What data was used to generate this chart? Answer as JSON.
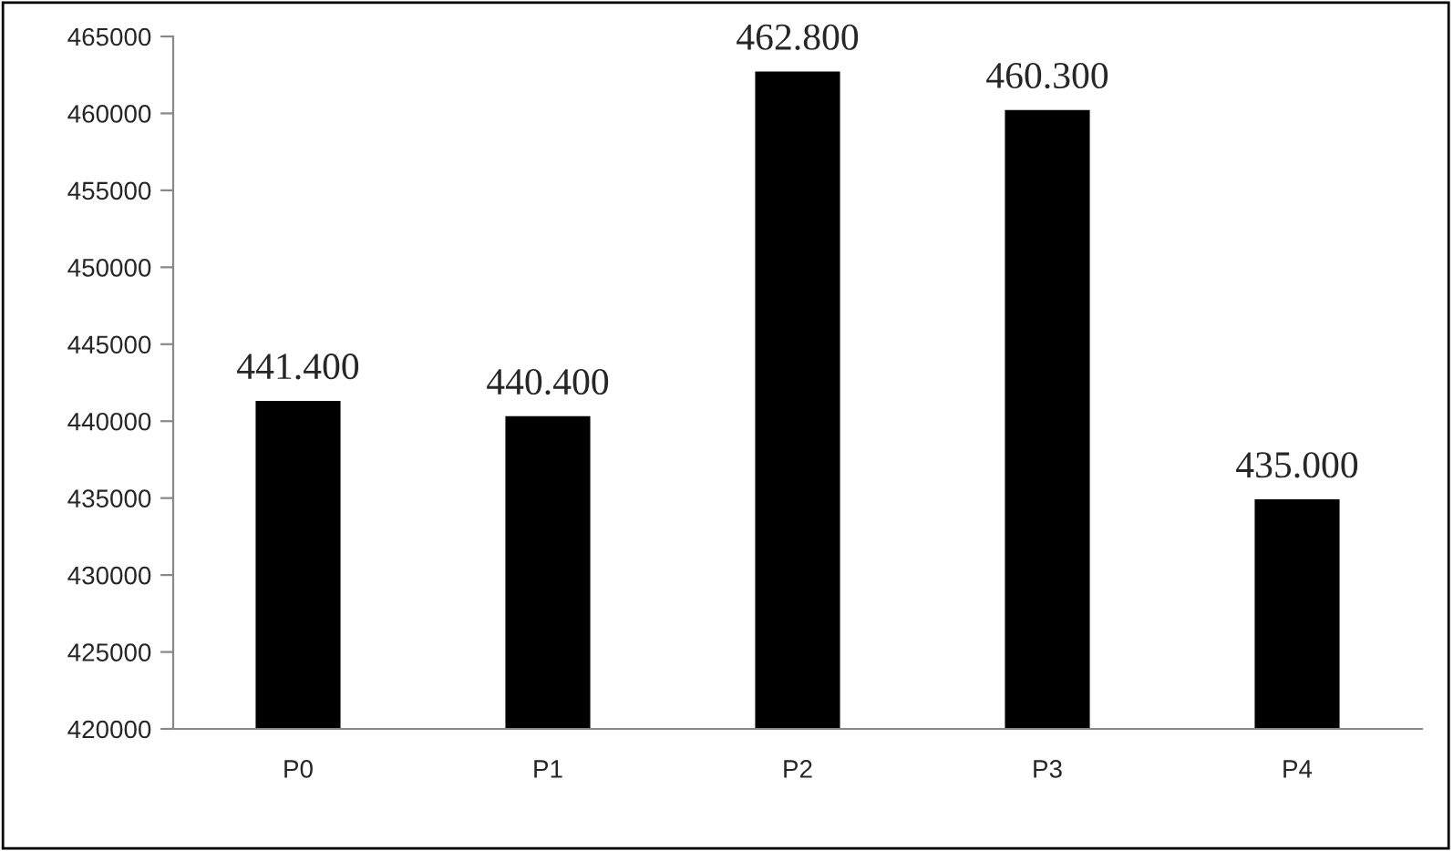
{
  "chart_data": {
    "type": "bar",
    "categories": [
      "P0",
      "P1",
      "P2",
      "P3",
      "P4"
    ],
    "values": [
      441400,
      440400,
      462800,
      460300,
      435000
    ],
    "value_labels": [
      "441.400",
      "440.400",
      "462.800",
      "460.300",
      "435.000"
    ],
    "color": "#000000",
    "ylim": [
      420000,
      465000
    ],
    "yticks": [
      420000,
      425000,
      430000,
      435000,
      440000,
      445000,
      450000,
      455000,
      460000,
      465000
    ],
    "grid": false
  }
}
